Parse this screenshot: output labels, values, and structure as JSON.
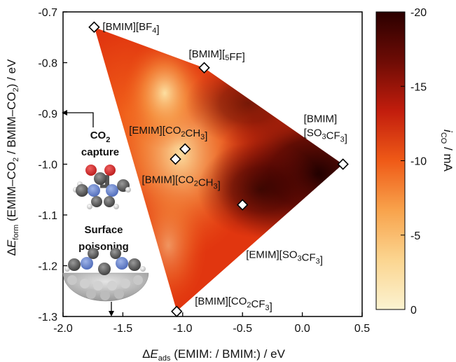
{
  "chart_data": {
    "type": "heatmap",
    "xlabel": "ΔE_ads (EMIM: / BMIM:) / eV",
    "ylabel": "ΔE_form (EMIM–CO₂ / BMIM–CO₂) / eV",
    "xlim": [
      -2.0,
      0.5
    ],
    "ylim": [
      -1.3,
      -0.7
    ],
    "x_ticks": [
      "-2.0",
      "-1.5",
      "-1.0",
      "-0.5",
      "0.0",
      "0.5"
    ],
    "y_ticks": [
      "-0.7",
      "-0.8",
      "-0.9",
      "-1.0",
      "-1.1",
      "-1.2",
      "-1.3"
    ],
    "colorbar": {
      "label": "i_CO / mA",
      "ticks": [
        "-20",
        "-15",
        "-10",
        "-5",
        "0"
      ],
      "range": [
        -20,
        0
      ],
      "colors": [
        "#2b0000",
        "#6e0c05",
        "#c21d0d",
        "#ef5a17",
        "#f8a34c",
        "#fbd590",
        "#fbf3d1"
      ]
    },
    "points": [
      {
        "label": "[BMIM][BF4]",
        "x": -1.74,
        "y": -0.73,
        "value": -7
      },
      {
        "label": "[BMIM][5FF]",
        "x": -0.82,
        "y": -0.81,
        "value": -12
      },
      {
        "label": "[BMIM] [SO3CF3]",
        "x": 0.34,
        "y": -1.0,
        "value": -19
      },
      {
        "label": "[EMIM][CO2CH3]",
        "x": -0.98,
        "y": -0.97,
        "value": -3
      },
      {
        "label": "[BMIM][CO2CH3]",
        "x": -1.06,
        "y": -0.99,
        "value": -3
      },
      {
        "label": "[EMIM][SO3CF3]",
        "x": -0.5,
        "y": -1.08,
        "value": -15
      },
      {
        "label": "[BMIM][CO2CF3]",
        "x": -1.05,
        "y": -1.29,
        "value": -8
      }
    ],
    "annotations": {
      "co2_capture": [
        "CO",
        "2",
        "capture"
      ],
      "surface_poisoning": [
        "Surface",
        "poisoning"
      ]
    }
  }
}
